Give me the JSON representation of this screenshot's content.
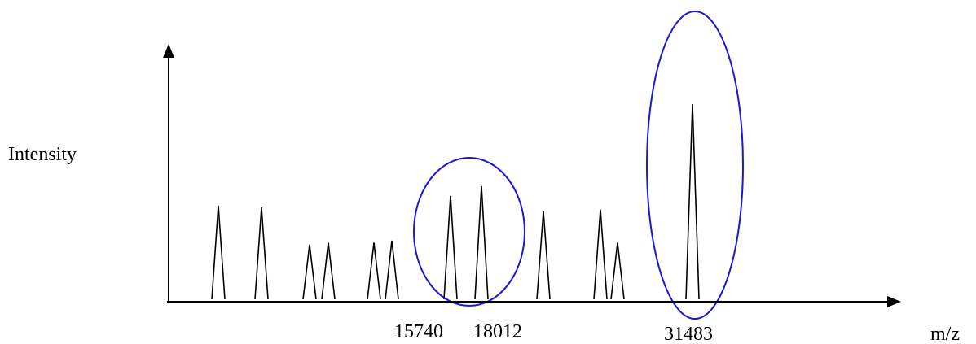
{
  "diagram": {
    "y_axis_label": "Intensity",
    "x_axis_label": "m/z",
    "axis_color": "#000000",
    "peak_color": "#000000",
    "highlight_color": "#1a1acc",
    "peaks": [
      {
        "height": 0.48
      },
      {
        "height": 0.47
      },
      {
        "height": 0.28
      },
      {
        "height": 0.29
      },
      {
        "height": 0.29
      },
      {
        "height": 0.3
      },
      {
        "height": 0.53,
        "label": "15740"
      },
      {
        "height": 0.58,
        "label": "18012"
      },
      {
        "height": 0.45
      },
      {
        "height": 0.46
      },
      {
        "height": 0.29
      },
      {
        "height": 1.0,
        "label": "31483"
      }
    ]
  }
}
